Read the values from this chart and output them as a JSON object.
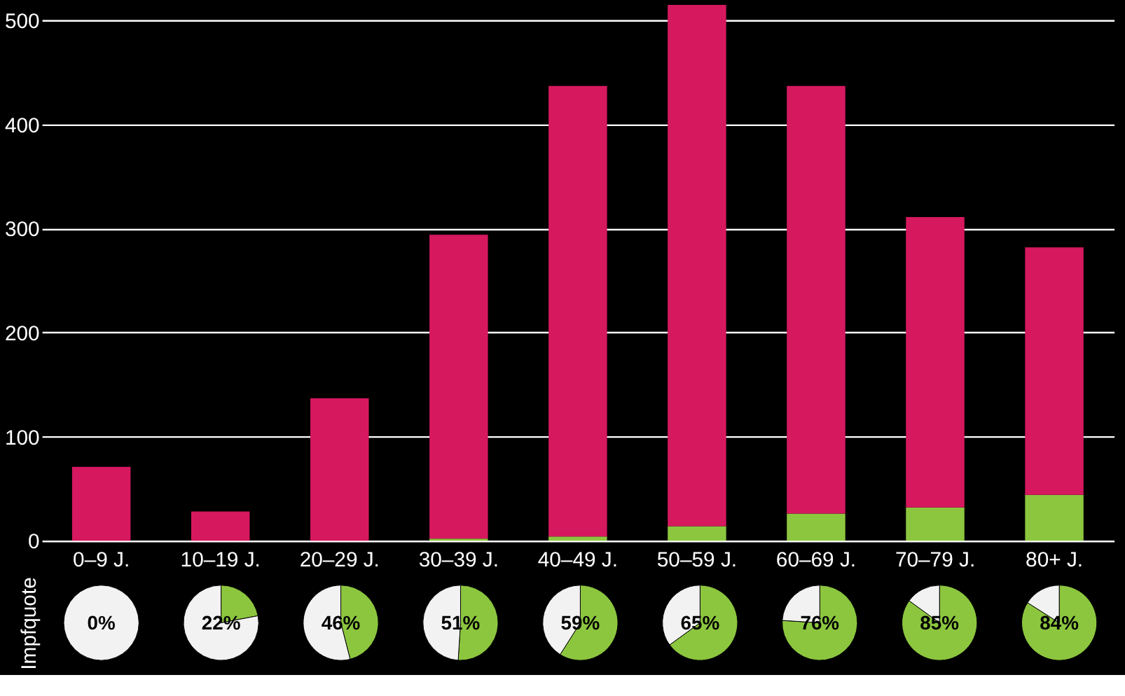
{
  "chart_data": [
    {
      "type": "bar",
      "stacked": true,
      "categories": [
        "0–9 J.",
        "10–19 J.",
        "20–29 J.",
        "30–39 J.",
        "40–49 J.",
        "50–59 J.",
        "60–69 J.",
        "70–79 J.",
        "80+ J."
      ],
      "series": [
        {
          "color": "#8cc63f",
          "values": [
            0,
            0,
            0,
            2,
            4,
            14,
            26,
            32,
            44
          ]
        },
        {
          "color": "#d6185f",
          "values": [
            71,
            28,
            137,
            292,
            433,
            501,
            411,
            279,
            238
          ]
        }
      ],
      "ylim": [
        0,
        515
      ],
      "yticks": [
        0,
        100,
        200,
        300,
        400,
        500
      ],
      "grid": "y",
      "legend": false
    },
    {
      "type": "pie",
      "ylabel": "Impfquote",
      "categories": [
        null,
        null
      ],
      "values": [
        0,
        100
      ],
      "colors": [
        "#8cc63f",
        "#f2f2f2"
      ],
      "value_labels": [
        "0%",
        null
      ]
    },
    {
      "type": "pie",
      "categories": [
        null,
        null
      ],
      "values": [
        22,
        78
      ],
      "colors": [
        "#8cc63f",
        "#f2f2f2"
      ],
      "value_labels": [
        "22%",
        null
      ]
    },
    {
      "type": "pie",
      "categories": [
        null,
        null
      ],
      "values": [
        46,
        54
      ],
      "colors": [
        "#8cc63f",
        "#f2f2f2"
      ],
      "value_labels": [
        "46%",
        null
      ]
    },
    {
      "type": "pie",
      "categories": [
        null,
        null
      ],
      "values": [
        51,
        49
      ],
      "colors": [
        "#8cc63f",
        "#f2f2f2"
      ],
      "value_labels": [
        "51%",
        null
      ]
    },
    {
      "type": "pie",
      "categories": [
        null,
        null
      ],
      "values": [
        59,
        41
      ],
      "colors": [
        "#8cc63f",
        "#f2f2f2"
      ],
      "value_labels": [
        "59%",
        null
      ]
    },
    {
      "type": "pie",
      "categories": [
        null,
        null
      ],
      "values": [
        65,
        35
      ],
      "colors": [
        "#8cc63f",
        "#f2f2f2"
      ],
      "value_labels": [
        "65%",
        null
      ]
    },
    {
      "type": "pie",
      "categories": [
        null,
        null
      ],
      "values": [
        76,
        24
      ],
      "colors": [
        "#8cc63f",
        "#f2f2f2"
      ],
      "value_labels": [
        "76%",
        null
      ]
    },
    {
      "type": "pie",
      "categories": [
        null,
        null
      ],
      "values": [
        85,
        15
      ],
      "colors": [
        "#8cc63f",
        "#f2f2f2"
      ],
      "value_labels": [
        "85%",
        null
      ]
    },
    {
      "type": "pie",
      "categories": [
        null,
        null
      ],
      "values": [
        84,
        16
      ],
      "colors": [
        "#8cc63f",
        "#f2f2f2"
      ],
      "value_labels": [
        "84%",
        null
      ]
    }
  ]
}
